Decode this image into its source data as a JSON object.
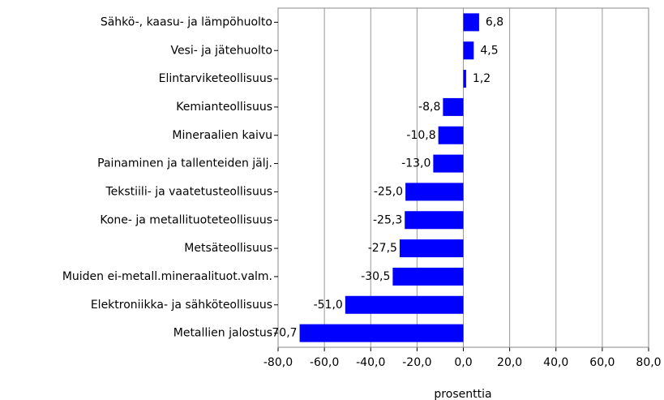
{
  "chart_data": {
    "type": "barh",
    "categories": [
      "Sähkö-, kaasu- ja lämpöhuolto",
      "Vesi- ja jätehuolto",
      "Elintarviketeollisuus",
      "Kemianteollisuus",
      "Mineraalien kaivu",
      "Painaminen ja tallenteiden jälj.",
      "Tekstiili- ja vaatetusteollisuus",
      "Kone- ja metallituoteteollisuus",
      "Metsäteollisuus",
      "Muiden ei-metall.mineraalituot.valm.",
      "Elektroniikka- ja sähköteollisuus",
      "Metallien jalostus"
    ],
    "values": [
      6.8,
      4.5,
      1.2,
      -8.8,
      -10.8,
      -13.0,
      -25.0,
      -25.3,
      -27.5,
      -30.5,
      -51.0,
      -70.7
    ],
    "value_labels": [
      "6,8",
      "4,5",
      "1,2",
      "-8,8",
      "-10,8",
      "-13,0",
      "-25,0",
      "-25,3",
      "-27,5",
      "-30,5",
      "-51,0",
      "-70,7"
    ],
    "color": "#0000ff",
    "xlabel": "prosenttia",
    "xlim": [
      -80,
      80
    ],
    "xticks": [
      {
        "value": -80,
        "label": "-80,0"
      },
      {
        "value": -60,
        "label": "-60,0"
      },
      {
        "value": -40,
        "label": "-40,0"
      },
      {
        "value": -20,
        "label": "-20,0"
      },
      {
        "value": 0,
        "label": "0,0"
      },
      {
        "value": 20,
        "label": "20,0"
      },
      {
        "value": 40,
        "label": "40,0"
      },
      {
        "value": 60,
        "label": "60,0"
      },
      {
        "value": 80,
        "label": "80,0"
      }
    ],
    "grid": true
  }
}
